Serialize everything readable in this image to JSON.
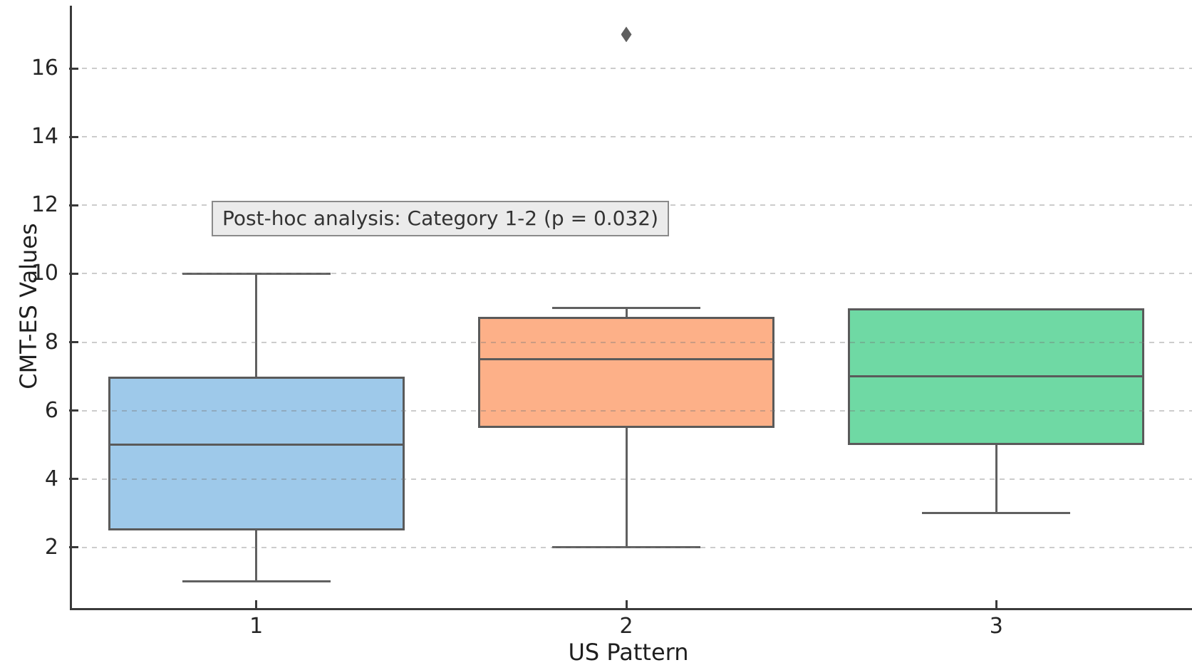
{
  "chart_data": {
    "type": "boxplot",
    "title": "",
    "xlabel": "US Pattern",
    "ylabel": "CMT-ES Values",
    "categories": [
      "1",
      "2",
      "3"
    ],
    "y_ticks": [
      2,
      4,
      6,
      8,
      10,
      12,
      14,
      16
    ],
    "ylim": [
      0.2,
      17.8
    ],
    "grid": "horizontal-dashed",
    "legend": "none",
    "annotation": {
      "text": "Post-hoc analysis: Category 1-2 (p = 0.032)"
    },
    "series": [
      {
        "category": "1",
        "color": "#9ec9ea",
        "whisker_low": 1,
        "q1": 2.5,
        "median": 5,
        "q3": 7,
        "whisker_high": 10,
        "outliers": []
      },
      {
        "category": "2",
        "color": "#fdb088",
        "whisker_low": 2,
        "q1": 5.5,
        "median": 7.5,
        "q3": 8.75,
        "whisker_high": 9,
        "outliers": [
          17
        ]
      },
      {
        "category": "3",
        "color": "#6fd9a4",
        "whisker_low": 3,
        "q1": 5,
        "median": 7,
        "q3": 9,
        "whisker_high": 9,
        "outliers": []
      }
    ],
    "colors": {
      "box_edge": "#5a5a5a",
      "whisker": "#606060",
      "axis": "#3a3a3a",
      "grid": "#d2d2d2",
      "tick_text": "#262626",
      "outlier": "#5f5f5f",
      "annotation_bg": "#ebebeb",
      "annotation_border": "#8a8a8a",
      "annotation_text": "#333333",
      "background": "#ffffff"
    }
  }
}
